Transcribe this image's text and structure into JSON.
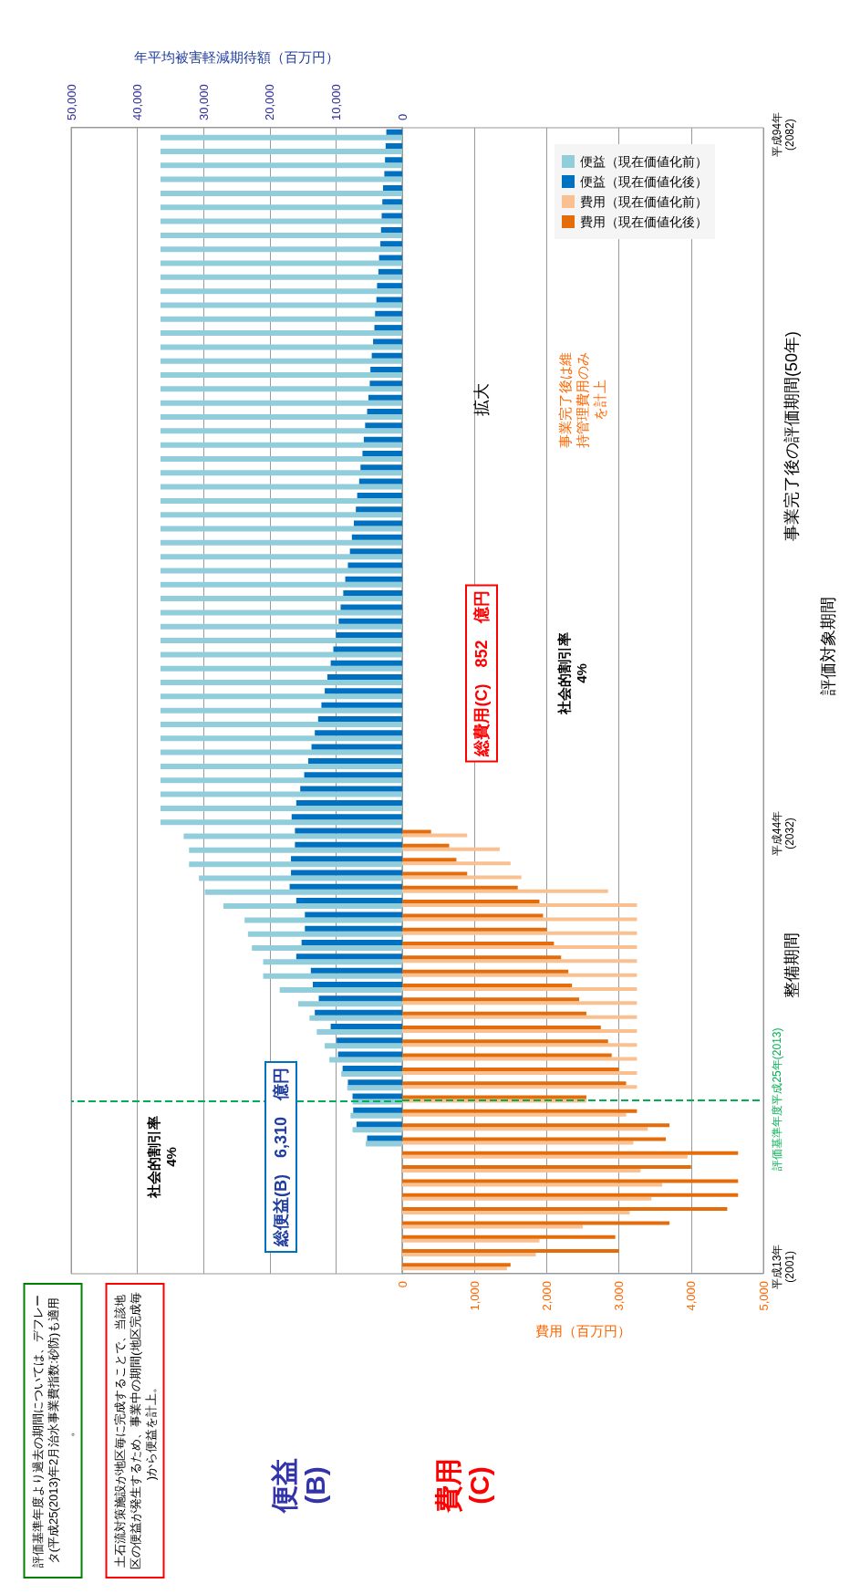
{
  "chart_data": {
    "type": "bar",
    "orientation": "horizontal",
    "categories": [
      "平成94年\n(2082)",
      null,
      null,
      null,
      null,
      null,
      null,
      null,
      null,
      null,
      null,
      null,
      null,
      null,
      null,
      null,
      null,
      null,
      null,
      null,
      null,
      null,
      null,
      null,
      null,
      null,
      null,
      null,
      null,
      null,
      null,
      null,
      null,
      null,
      null,
      null,
      null,
      null,
      null,
      null,
      null,
      null,
      null,
      null,
      null,
      null,
      null,
      null,
      null,
      null,
      "平成44年\n(2032)",
      null,
      null,
      null,
      null,
      null,
      null,
      null,
      null,
      null,
      null,
      null,
      null,
      null,
      null,
      null,
      null,
      null,
      null,
      "評価基準年度平成25年(2013)",
      null,
      null,
      null,
      null,
      null,
      null,
      null,
      null,
      null,
      null,
      null,
      "平成13年\n(2001)"
    ],
    "ref_lines": [
      {
        "axis": "y",
        "value": "評価基準年度平成25年(2013)",
        "color": "#00b050",
        "line_style": "dashed"
      }
    ],
    "series": [
      {
        "name": "便益（現在価値化前）",
        "color": "#92cddc",
        "axis": "x2",
        "values": [
          36500,
          36500,
          36500,
          36500,
          36500,
          36500,
          36500,
          36500,
          36500,
          36500,
          36500,
          36500,
          36500,
          36500,
          36500,
          36500,
          36500,
          36500,
          36500,
          36500,
          36500,
          36500,
          36500,
          36500,
          36500,
          36500,
          36500,
          36500,
          36500,
          36500,
          36500,
          36500,
          36500,
          36500,
          36500,
          36500,
          36500,
          36500,
          36500,
          36500,
          36500,
          36500,
          36500,
          36500,
          36500,
          36500,
          36500,
          36500,
          36500,
          36500,
          33000,
          32200,
          32200,
          30700,
          29800,
          27000,
          23800,
          23300,
          22700,
          21000,
          21000,
          18500,
          15700,
          14000,
          12900,
          11700,
          11000,
          9200,
          8300,
          7500,
          7800,
          7500,
          5500,
          null,
          null,
          null,
          null,
          null,
          null,
          null,
          null,
          null
        ]
      },
      {
        "name": "便益（現在価値化後）",
        "color": "#0070c0",
        "axis": "x2",
        "values": [
          2400,
          2500,
          2600,
          2700,
          2900,
          3000,
          3100,
          3200,
          3300,
          3500,
          3600,
          3800,
          3900,
          4100,
          4200,
          4400,
          4600,
          4800,
          4900,
          5100,
          5300,
          5600,
          5800,
          6000,
          6300,
          6500,
          6800,
          7000,
          7300,
          7600,
          7900,
          8200,
          8600,
          8900,
          9300,
          9600,
          10000,
          10400,
          10800,
          11300,
          11700,
          12200,
          12700,
          13200,
          13700,
          14200,
          14800,
          15400,
          16000,
          16700,
          16200,
          16200,
          16800,
          16800,
          17000,
          16000,
          14700,
          14700,
          15200,
          16000,
          13800,
          13500,
          12600,
          13200,
          10800,
          9900,
          9700,
          9000,
          8200,
          7500,
          7400,
          6900,
          5300,
          null,
          null,
          null,
          null,
          null,
          null,
          null,
          null,
          null
        ]
      },
      {
        "name": "費用（現在価値化前）",
        "color": "#fac090",
        "values": [
          null,
          null,
          null,
          null,
          null,
          null,
          null,
          null,
          null,
          null,
          null,
          null,
          null,
          null,
          null,
          null,
          null,
          null,
          null,
          null,
          null,
          null,
          null,
          null,
          null,
          null,
          null,
          null,
          null,
          null,
          null,
          null,
          null,
          null,
          null,
          null,
          null,
          null,
          null,
          null,
          null,
          null,
          null,
          null,
          null,
          null,
          null,
          null,
          null,
          null,
          900,
          1350,
          1500,
          1650,
          2850,
          3250,
          3250,
          3250,
          3250,
          3250,
          3250,
          3250,
          3250,
          3250,
          3250,
          3250,
          3250,
          3250,
          3250,
          2550,
          3100,
          3400,
          3200,
          3950,
          3300,
          3600,
          3450,
          3150,
          2500,
          1900,
          1850,
          1450
        ]
      },
      {
        "name": "費用（現在価値化後）",
        "color": "#e46c0a",
        "values": [
          null,
          null,
          null,
          null,
          null,
          null,
          null,
          null,
          null,
          null,
          null,
          null,
          null,
          null,
          null,
          null,
          null,
          null,
          null,
          null,
          null,
          null,
          null,
          null,
          null,
          null,
          null,
          null,
          null,
          null,
          null,
          null,
          null,
          null,
          null,
          null,
          null,
          null,
          null,
          null,
          null,
          null,
          null,
          null,
          null,
          null,
          null,
          null,
          null,
          null,
          400,
          650,
          750,
          900,
          1600,
          1900,
          1950,
          2000,
          2100,
          2200,
          2300,
          2350,
          2450,
          2550,
          2750,
          2850,
          2900,
          3000,
          3100,
          2550,
          3250,
          3700,
          3650,
          4650,
          4000,
          4650,
          4650,
          4500,
          3700,
          2950,
          3000,
          1500
        ]
      }
    ],
    "x2lim": [
      50000,
      0
    ],
    "x2ticks": [
      {
        "value": 50000,
        "label": "50,000"
      },
      {
        "value": 40000,
        "label": "40,000"
      },
      {
        "value": 30000,
        "label": "30,000"
      },
      {
        "value": 20000,
        "label": "20,000"
      },
      {
        "value": 10000,
        "label": "10,000"
      },
      0
    ],
    "x2label": "年平均被害軽減期待額（百万円）",
    "xlim": [
      0,
      5000
    ],
    "xticks": [
      0,
      {
        "value": 1000,
        "label": "1,000"
      },
      {
        "value": 2000,
        "label": "2,000"
      },
      {
        "value": 3000,
        "label": "3,000"
      },
      {
        "value": 4000,
        "label": "4,000"
      },
      {
        "value": 5000,
        "label": "5,000"
      }
    ],
    "xlabel": "費用（百万円）",
    "annotations": [
      "総便益(B)　6,310　億円",
      "総費用(C)　852　億円",
      "社会的割引率\n4%",
      "社会的割引率\n4%",
      "拡大",
      "事業完了後は維持管理費用のみを計上",
      "評価基準年度より過去の期間については、デフレータ(平成25(2013)年2月治水事業費指数:砂防)も適用。",
      "土石流対策施設が地区毎に完成することで、当該地区の便益が発生するため、事業中の期間(地区完成毎)から便益を計上。",
      "便益\n(B)",
      "費用\n(C)",
      "整備期間",
      "事業完了後の評価期間(50年)",
      "評価対象期間"
    ],
    "legend": "top right",
    "grid": "x"
  }
}
